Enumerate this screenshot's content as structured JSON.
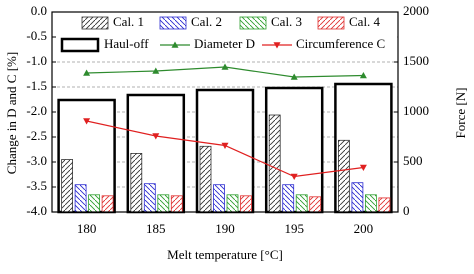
{
  "chart_data": {
    "type": "bar",
    "x_label": "Melt temperature [°C]",
    "y_label": "Change in D and C [%]",
    "y2_label": "Force [N]",
    "categories": [
      "180",
      "185",
      "190",
      "195",
      "200"
    ],
    "ylim": [
      -4.0,
      0.0
    ],
    "yticks": [
      {
        "value": -4.0,
        "label": "-4.0"
      },
      -3.5,
      {
        "value": -3.0,
        "label": "-3.0"
      },
      -2.5,
      {
        "value": -2.0,
        "label": "-2.0"
      },
      -1.5,
      {
        "value": -1.0,
        "label": "-1.0"
      },
      -0.5,
      {
        "value": 0.0,
        "label": "0.0"
      }
    ],
    "y2lim": [
      0,
      2000
    ],
    "y2ticks": [
      0,
      500,
      1000,
      1500,
      2000
    ],
    "grid": true,
    "legend": "top",
    "series": [
      {
        "name": "Haul-off",
        "kind": "bar",
        "axis": "y2",
        "color": "#000000",
        "values": [
          1120,
          1170,
          1220,
          1240,
          1280
        ]
      },
      {
        "name": "Cal. 1",
        "kind": "bar",
        "axis": "y2",
        "color": "#333333",
        "hatch": "/",
        "values": [
          525,
          586,
          657,
          970,
          717
        ]
      },
      {
        "name": "Cal. 2",
        "kind": "bar",
        "axis": "y2",
        "color": "#2b2bd0",
        "hatch": "\\",
        "values": [
          273,
          283,
          273,
          273,
          293
        ]
      },
      {
        "name": "Cal. 3",
        "kind": "bar",
        "axis": "y2",
        "color": "#2e9e2e",
        "hatch": "\\",
        "values": [
          172,
          172,
          172,
          172,
          172
        ]
      },
      {
        "name": "Cal. 4",
        "kind": "bar",
        "axis": "y2",
        "color": "#e03030",
        "hatch": "/",
        "values": [
          162,
          162,
          162,
          152,
          141
        ]
      },
      {
        "name": "Diameter D",
        "kind": "line",
        "color": "#2e8b2e",
        "marker": "^",
        "values": [
          -1.22,
          -1.18,
          -1.1,
          -1.3,
          -1.27
        ]
      },
      {
        "name": "Circumference C",
        "kind": "line",
        "color": "#e02020",
        "marker": "v",
        "values": [
          -2.18,
          -2.48,
          -2.67,
          -3.29,
          -3.11
        ]
      }
    ]
  }
}
